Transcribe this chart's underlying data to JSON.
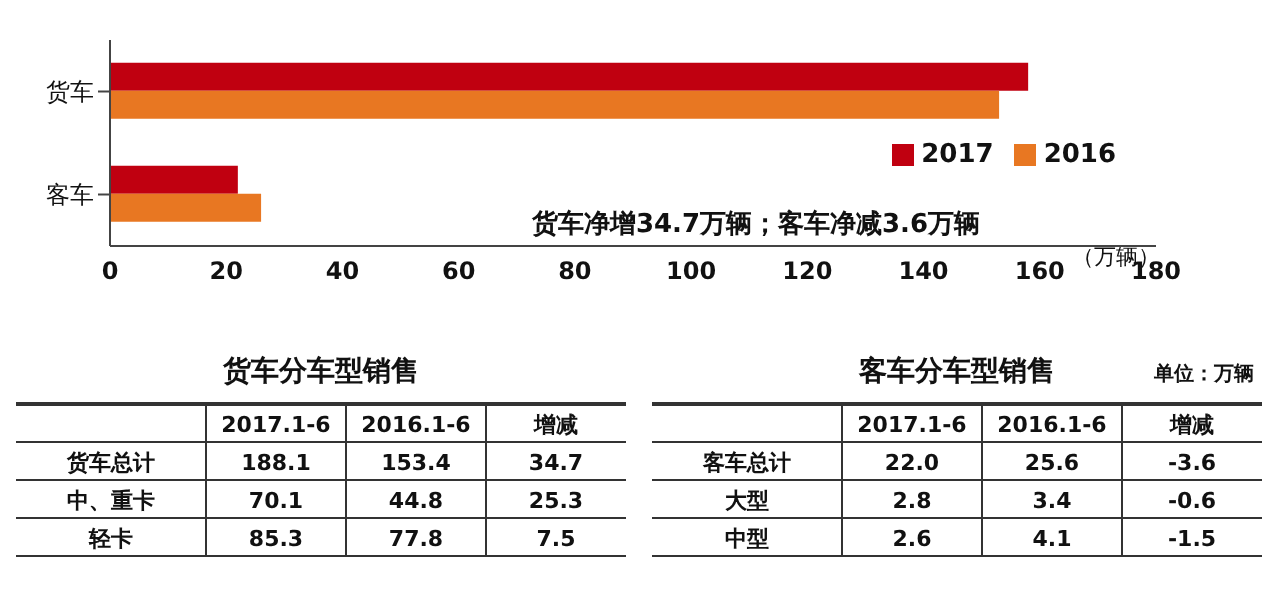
{
  "chart_data": [
    {
      "type": "bar",
      "orientation": "horizontal",
      "categories": [
        "货车",
        "客车"
      ],
      "series": [
        {
          "name": "2017",
          "color": "#c00010",
          "values": [
            158,
            22
          ]
        },
        {
          "name": "2016",
          "color": "#e87722",
          "values": [
            153,
            26
          ]
        }
      ],
      "xlim": [
        0,
        180
      ],
      "xticks": [
        0,
        20,
        40,
        60,
        80,
        100,
        120,
        140,
        160,
        180
      ],
      "xlabel": "（万辆）",
      "legend": "right",
      "annotations": [
        "货车净增34.7万辆；客车净减3.6万辆"
      ]
    },
    {
      "type": "heatmap",
      "title": "货车分车型销售",
      "categories": [
        "2017.1-6",
        "2016.1-6",
        "增减"
      ],
      "y_categories": [
        "货车总计",
        "中、重卡",
        "轻卡"
      ],
      "cells": [
        [
          188.1,
          153.4,
          34.7
        ],
        [
          70.1,
          44.8,
          25.3
        ],
        [
          85.3,
          77.8,
          7.5
        ]
      ],
      "data_labels": true
    },
    {
      "type": "heatmap",
      "title": "客车分车型销售",
      "categories": [
        "2017.1-6",
        "2016.1-6",
        "增减"
      ],
      "y_categories": [
        "客车总计",
        "大型",
        "中型"
      ],
      "cells": [
        [
          22.0,
          25.6,
          -3.6
        ],
        [
          2.8,
          3.4,
          -0.6
        ],
        [
          2.6,
          4.1,
          -1.5
        ]
      ],
      "data_labels": true,
      "cell_labels": [
        [
          "22.0",
          "25.6",
          "-3.6"
        ],
        [
          "2.8",
          "3.4",
          "-0.6"
        ],
        [
          "2.6",
          "4.1",
          "-1.5"
        ]
      ],
      "annotations": [
        "单位：万辆"
      ]
    }
  ]
}
